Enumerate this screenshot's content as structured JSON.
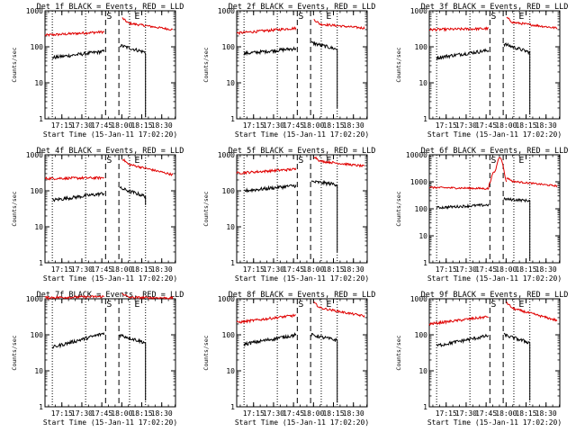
{
  "chart_data": {
    "type": "line",
    "layout": "3x3 grid of panels",
    "time_window": [
      "17:02:20",
      "18:40:00"
    ],
    "start_time_label": "Start Time (15-Jan-11 17:02:20)",
    "ylabel": "Counts/sec",
    "yscale": "log",
    "x_tick_labels": [
      "17:15",
      "17:30",
      "17:45",
      "18:00",
      "18:15",
      "18:30"
    ],
    "x_ticks_min": [
      12.67,
      27.67,
      42.67,
      57.67,
      72.67,
      87.67
    ],
    "y_tick_labels_default": [
      "1",
      "10",
      "100",
      "1000"
    ],
    "y_tick_labels_6f": [
      "1",
      "10",
      "100",
      "1000",
      "10000"
    ],
    "series_colors": {
      "events": "#000000",
      "lld": "#e00000"
    },
    "markers": [
      {
        "label": "S",
        "minute": 45.5
      },
      {
        "label": "E",
        "minute": 66.5
      }
    ],
    "dotted_lines_min": [
      5.5,
      30.5,
      63.5,
      75.5
    ],
    "dashed_lines_min": [
      45.5,
      55.5
    ],
    "panels": [
      {
        "id": "1f",
        "title": "Det 1f BLACK = Events, RED = LLD",
        "ymax": 1000,
        "lld": {
          "pre": 210,
          "preEnd": 260,
          "post": 480,
          "postEnd": 300
        },
        "events": {
          "pre": 50,
          "preEnd": 75,
          "post": 110,
          "postEnd": 70,
          "drop": 1.1
        }
      },
      {
        "id": "2f",
        "title": "Det 2f BLACK = Events, RED = LLD",
        "ymax": 1000,
        "lld": {
          "pre": 240,
          "preEnd": 330,
          "post": 440,
          "postEnd": 330
        },
        "events": {
          "pre": 65,
          "preEnd": 90,
          "post": 130,
          "postEnd": 85,
          "drop": 2
        }
      },
      {
        "id": "3f",
        "title": "Det 3f BLACK = Events, RED = LLD",
        "ymax": 1000,
        "lld": {
          "pre": 300,
          "preEnd": 320,
          "post": 500,
          "postEnd": 330
        },
        "events": {
          "pre": 50,
          "preEnd": 80,
          "post": 120,
          "postEnd": 70,
          "drop": 1.3
        }
      },
      {
        "id": "4f",
        "title": "Det 4f BLACK = Events, RED = LLD",
        "ymax": 1000,
        "lld": {
          "pre": 220,
          "preEnd": 230,
          "post": 600,
          "postEnd": 280
        },
        "events": {
          "pre": 55,
          "preEnd": 85,
          "post": 120,
          "postEnd": 70,
          "drop": 40
        }
      },
      {
        "id": "5f",
        "title": "Det 5f BLACK = Events, RED = LLD",
        "ymax": 1000,
        "lld": {
          "pre": 310,
          "preEnd": 400,
          "post": 700,
          "postEnd": 480
        },
        "events": {
          "pre": 100,
          "preEnd": 140,
          "post": 180,
          "postEnd": 150,
          "drop": 2
        }
      },
      {
        "id": "6f",
        "title": "Det 6f BLACK = Events, RED = LLD",
        "ymax": 10000,
        "lld": {
          "pre": 620,
          "preEnd": 560,
          "post": 1100,
          "postEnd": 700,
          "flare": true
        },
        "events": {
          "pre": 110,
          "preEnd": 140,
          "post": 230,
          "postEnd": 200,
          "drop": 1.2
        }
      },
      {
        "id": "7f",
        "title": "Det 7f BLACK = Events, RED = LLD",
        "ymax": 1000,
        "lld": {
          "pre": 1080,
          "preEnd": 1150,
          "post": 1100,
          "postEnd": 1050
        },
        "events": {
          "pre": 45,
          "preEnd": 110,
          "post": 100,
          "postEnd": 60,
          "drop": 1.5
        }
      },
      {
        "id": "8f",
        "title": "Det 8f BLACK = Events, RED = LLD",
        "ymax": 1000,
        "lld": {
          "pre": 220,
          "preEnd": 350,
          "post": 600,
          "postEnd": 330
        },
        "events": {
          "pre": 55,
          "preEnd": 100,
          "post": 100,
          "postEnd": 70,
          "drop": 1.3
        }
      },
      {
        "id": "9f",
        "title": "Det 9f BLACK = Events, RED = LLD",
        "ymax": 1000,
        "lld": {
          "pre": 200,
          "preEnd": 320,
          "post": 600,
          "postEnd": 250
        },
        "events": {
          "pre": 50,
          "preEnd": 95,
          "post": 100,
          "postEnd": 60,
          "drop": 1.5
        }
      }
    ]
  }
}
